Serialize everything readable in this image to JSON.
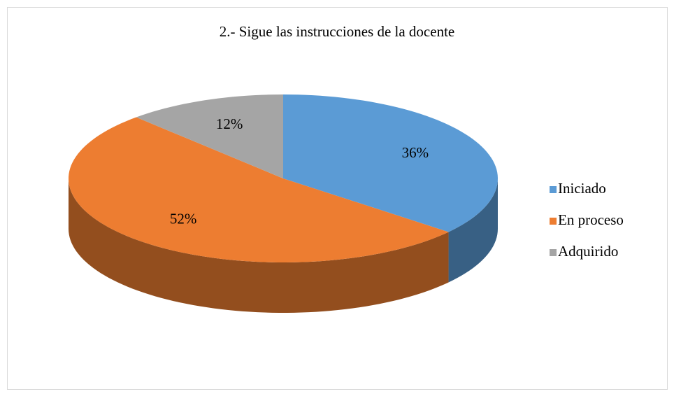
{
  "chart_data": {
    "type": "pie3d",
    "title": "2.- Sigue las instrucciones de la docente",
    "categories": [
      "Iniciado",
      "En proceso",
      "Adquirido"
    ],
    "values": [
      36,
      52,
      12
    ],
    "value_labels": [
      "36%",
      "52%",
      "12%"
    ],
    "colors": [
      "#5b9bd5",
      "#ed7d31",
      "#a5a5a5"
    ],
    "legend": "right"
  }
}
